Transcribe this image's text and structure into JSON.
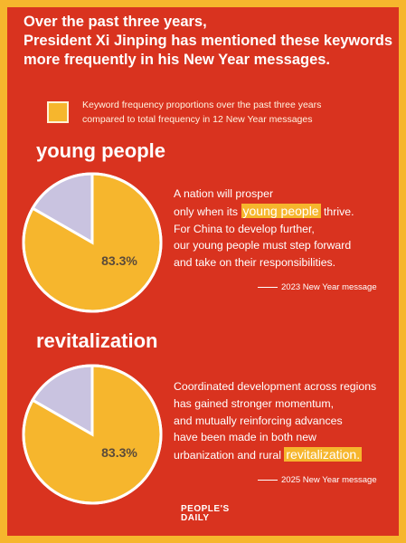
{
  "title": {
    "line1": "Over the past three years,",
    "line2": "President Xi Jinping has mentioned these keywords",
    "line3": "more frequently in his New Year messages."
  },
  "legend": {
    "line1": "Keyword frequency proportions over the past three years",
    "line2": "compared to total frequency in 12 New Year messages",
    "color": "#f6b62d"
  },
  "colors": {
    "background": "#d9331f",
    "border": "#f6b62d",
    "slice_main": "#f6b62d",
    "slice_rest": "#c9c3e0"
  },
  "sections": [
    {
      "keyword": "young people",
      "quote": {
        "line1": "A nation will prosper",
        "line2_pre": "only when its ",
        "line2_highlight": "young people",
        "line2_post": " thrive.",
        "line3": "For China to develop further,",
        "line4": "our young people must step forward",
        "line5": "and take on their responsibilities."
      },
      "source": "2023 New Year message"
    },
    {
      "keyword": "revitalization",
      "quote": {
        "line1": "Coordinated development across regions",
        "line2": "has gained stronger momentum,",
        "line3": "and mutually reinforcing advances",
        "line4": "have been made in both new",
        "line5_pre": "urbanization and rural ",
        "line5_highlight": "revitalization."
      },
      "source": "2025 New Year message"
    }
  ],
  "chart_data": [
    {
      "type": "pie",
      "keyword": "young people",
      "slices": [
        {
          "label": "83.3%",
          "value": 83.3,
          "color": "#f6b62d"
        },
        {
          "label": "",
          "value": 16.7,
          "color": "#c9c3e0"
        }
      ]
    },
    {
      "type": "pie",
      "keyword": "revitalization",
      "slices": [
        {
          "label": "83.3%",
          "value": 83.3,
          "color": "#f6b62d"
        },
        {
          "label": "",
          "value": 16.7,
          "color": "#c9c3e0"
        }
      ]
    }
  ],
  "logo": {
    "line1": "PEOPLE'S",
    "line2": "DAILY"
  }
}
